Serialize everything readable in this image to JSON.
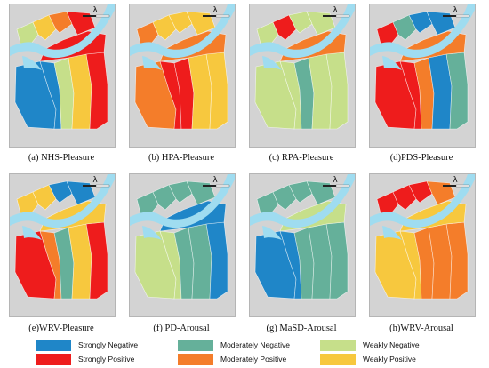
{
  "colors": {
    "strongly_negative": "#1f86c8",
    "strongly_positive": "#ee1c1c",
    "moderately_negative": "#65b09a",
    "moderately_positive": "#f47d2a",
    "weakly_negative": "#c6df8a",
    "weakly_positive": "#f7c83e",
    "water": "#9fdcf0",
    "basemap": "#d3d3d3"
  },
  "north_arrow_symbol": "λ",
  "panels": [
    {
      "caption": "(a) NHS-Pleasure",
      "zone_classes": [
        "strongly_negative",
        "strongly_negative",
        "weakly_negative",
        "weakly_positive",
        "strongly_positive",
        "strongly_positive"
      ],
      "north_classes": [
        "weakly_negative",
        "weakly_positive",
        "moderately_positive",
        "strongly_positive"
      ]
    },
    {
      "caption": "(b) HPA-Pleasure",
      "zone_classes": [
        "moderately_positive",
        "strongly_positive",
        "strongly_positive",
        "weakly_positive",
        "weakly_positive",
        "moderately_positive"
      ],
      "north_classes": [
        "moderately_positive",
        "weakly_positive",
        "weakly_positive",
        "weakly_positive"
      ]
    },
    {
      "caption": "(c) RPA-Pleasure",
      "zone_classes": [
        "weakly_negative",
        "weakly_negative",
        "moderately_negative",
        "weakly_negative",
        "weakly_negative",
        "moderately_positive"
      ],
      "north_classes": [
        "weakly_negative",
        "strongly_positive",
        "weakly_negative",
        "weakly_negative"
      ]
    },
    {
      "caption": "(d)PDS-Pleasure",
      "zone_classes": [
        "strongly_positive",
        "strongly_positive",
        "moderately_positive",
        "strongly_negative",
        "moderately_negative",
        "moderately_positive"
      ],
      "north_classes": [
        "strongly_positive",
        "moderately_negative",
        "strongly_negative",
        "strongly_negative"
      ]
    },
    {
      "caption": "(e)WRV-Pleasure",
      "zone_classes": [
        "strongly_positive",
        "moderately_positive",
        "moderately_negative",
        "weakly_positive",
        "strongly_positive",
        "weakly_positive"
      ],
      "north_classes": [
        "weakly_positive",
        "weakly_positive",
        "strongly_negative",
        "strongly_negative"
      ]
    },
    {
      "caption": "(f) PD-Arousal",
      "zone_classes": [
        "weakly_negative",
        "weakly_negative",
        "moderately_negative",
        "moderately_negative",
        "strongly_negative",
        "strongly_negative"
      ],
      "north_classes": [
        "moderately_negative",
        "moderately_negative",
        "moderately_negative",
        "moderately_negative"
      ]
    },
    {
      "caption": "(g) MaSD-Arousal",
      "zone_classes": [
        "strongly_negative",
        "strongly_negative",
        "moderately_negative",
        "moderately_negative",
        "moderately_negative",
        "weakly_negative"
      ],
      "north_classes": [
        "moderately_negative",
        "moderately_negative",
        "moderately_negative",
        "moderately_negative"
      ]
    },
    {
      "caption": "(h)WRV-Arousal",
      "zone_classes": [
        "weakly_positive",
        "weakly_positive",
        "moderately_positive",
        "moderately_positive",
        "moderately_positive",
        "weakly_positive"
      ],
      "north_classes": [
        "strongly_positive",
        "strongly_positive",
        "strongly_positive",
        "moderately_positive"
      ]
    }
  ],
  "legend": [
    {
      "label": "Strongly Negative",
      "class": "strongly_negative"
    },
    {
      "label": "Moderately Negative",
      "class": "moderately_negative"
    },
    {
      "label": "Weakly Negative",
      "class": "weakly_negative"
    },
    {
      "label": "Strongly Positive",
      "class": "strongly_positive"
    },
    {
      "label": "Moderately Positive",
      "class": "moderately_positive"
    },
    {
      "label": "Weakly Positive",
      "class": "weakly_positive"
    }
  ]
}
